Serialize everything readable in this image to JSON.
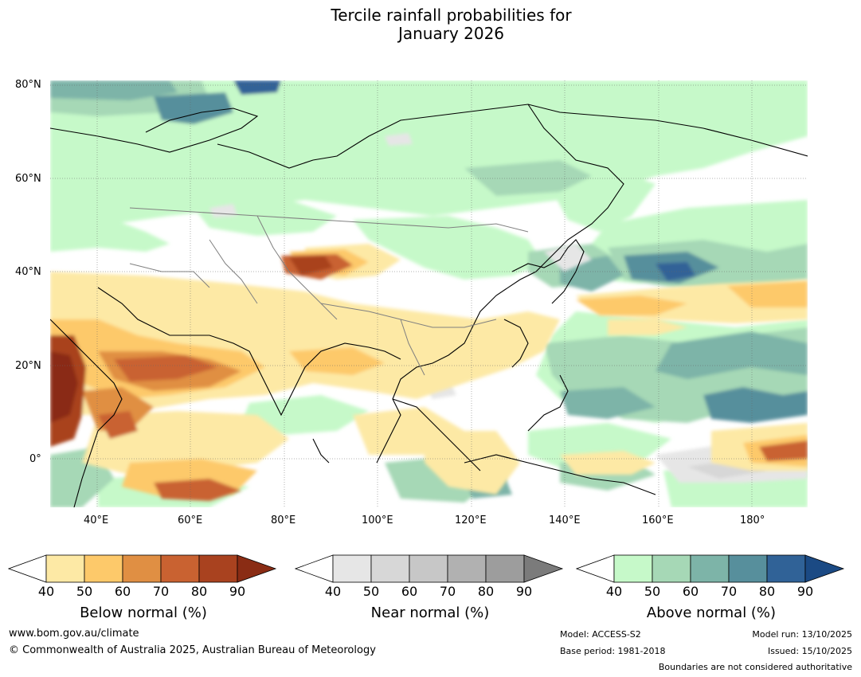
{
  "title_line1": "Tercile rainfall probabilities for",
  "title_line2": "January 2026",
  "map": {
    "lat_labels": [
      "80°N",
      "60°N",
      "40°N",
      "20°N",
      "0°"
    ],
    "lon_labels": [
      "40°E",
      "60°E",
      "80°E",
      "100°E",
      "120°E",
      "140°E",
      "160°E",
      "180°"
    ],
    "extent": {
      "lon_min": 30,
      "lon_max": 192,
      "lat_min": -10,
      "lat_max": 81
    }
  },
  "colorbars": {
    "below": {
      "title": "Below normal (%)",
      "ticks": [
        "40",
        "50",
        "60",
        "70",
        "80",
        "90"
      ],
      "colors": [
        "#ffffff",
        "#fde9a5",
        "#fdc96a",
        "#e08f43",
        "#c96231",
        "#a9421f",
        "#8a2c14"
      ]
    },
    "near": {
      "title": "Near normal (%)",
      "ticks": [
        "40",
        "50",
        "60",
        "70",
        "80",
        "90"
      ],
      "colors": [
        "#ffffff",
        "#e6e6e6",
        "#d7d7d7",
        "#c7c7c7",
        "#b1b1b1",
        "#9d9d9d",
        "#7b7b7b"
      ]
    },
    "above": {
      "title": "Above normal (%)",
      "ticks": [
        "40",
        "50",
        "60",
        "70",
        "80",
        "90"
      ],
      "colors": [
        "#ffffff",
        "#c6f9c9",
        "#a6d8b6",
        "#7db4a8",
        "#578f9c",
        "#306297",
        "#1b4a84"
      ]
    }
  },
  "footer": {
    "url": "www.bom.gov.au/climate",
    "copyright": "© Commonwealth of Australia 2025, Australian Bureau of Meteorology",
    "model": "Model: ACCESS-S2",
    "base_period": "Base period: 1981-2018",
    "model_run": "Model run: 13/10/2025",
    "issued": "Issued: 15/10/2025",
    "boundaries_note": "Boundaries are not considered authoritative"
  }
}
